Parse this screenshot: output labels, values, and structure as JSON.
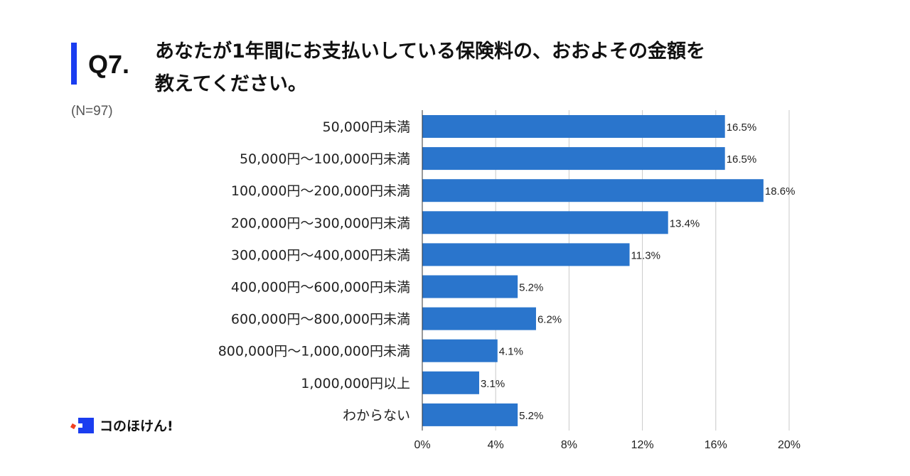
{
  "header": {
    "qnum": "Q7.",
    "title_line1": "あなたが1年間にお支払いしている保険料の、おおよその金額を",
    "title_line2": "教えてください。",
    "sample": "(N=97)"
  },
  "logo": {
    "text": "コのほけん!"
  },
  "chart_data": {
    "type": "bar",
    "orientation": "horizontal",
    "categories": [
      "50,000円未満",
      "50,000円〜100,000円未満",
      "100,000円〜200,000円未満",
      "200,000円〜300,000円未満",
      "300,000円〜400,000円未満",
      "400,000円〜600,000円未満",
      "600,000円〜800,000円未満",
      "800,000円〜1,000,000円未満",
      "1,000,000円以上",
      "わからない"
    ],
    "values": [
      16.5,
      16.5,
      18.6,
      13.4,
      11.3,
      5.2,
      6.2,
      4.1,
      3.1,
      5.2
    ],
    "data_labels": [
      "16.5%",
      "16.5%",
      "18.6%",
      "13.4%",
      "11.3%",
      "5.2%",
      "6.2%",
      "4.1%",
      "3.1%",
      "5.2%"
    ],
    "xlim": [
      0,
      20
    ],
    "xticks": [
      "0%",
      "4%",
      "8%",
      "12%",
      "16%",
      "20%"
    ],
    "grid": true,
    "bar_color": "#2a75cc"
  }
}
